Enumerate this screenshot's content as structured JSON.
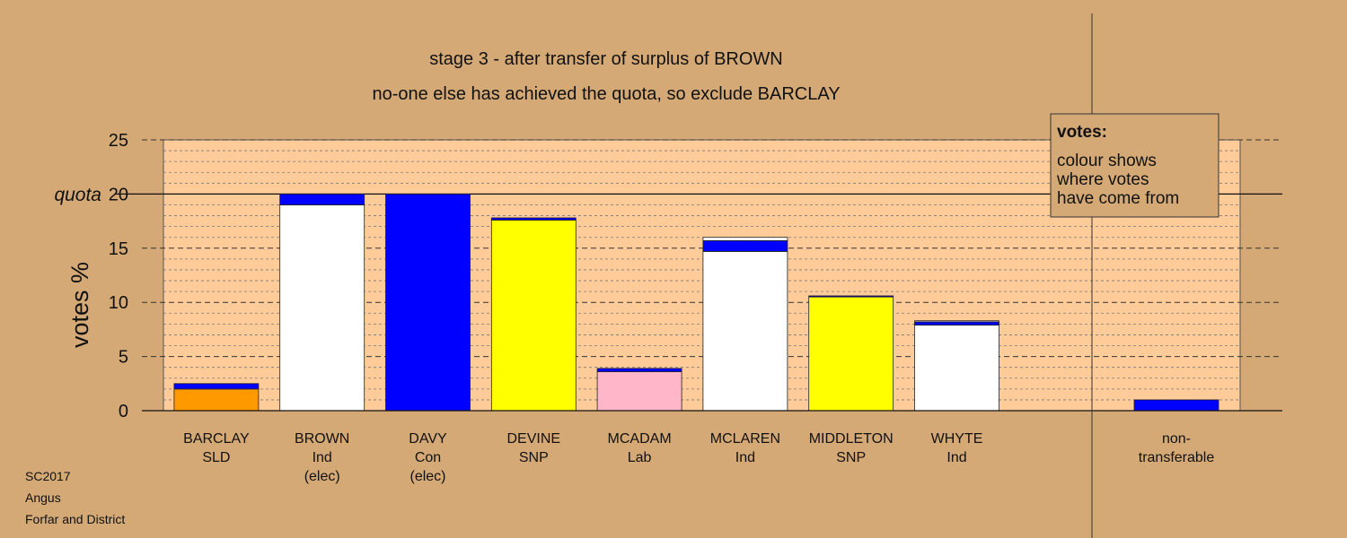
{
  "chart_data": {
    "type": "bar",
    "stacked": true,
    "title": "stage 3 - after transfer of surplus of BROWN",
    "subtitle": "no-one else has achieved the quota, so exclude BARCLAY",
    "ylabel": "votes %",
    "ylim": [
      0,
      25
    ],
    "yticks": [
      0,
      5,
      10,
      15,
      20,
      25
    ],
    "quota": {
      "label": "quota",
      "value": 20
    },
    "grid": "dashed",
    "legend": {
      "placement": "top-right",
      "title": "votes:",
      "lines": [
        "colour shows",
        "where votes",
        "have come from"
      ]
    },
    "categories": [
      {
        "name": "BARCLAY",
        "party": "SLD",
        "status": ""
      },
      {
        "name": "BROWN",
        "party": "Ind",
        "status": "(elec)"
      },
      {
        "name": "DAVY",
        "party": "Con",
        "status": "(elec)"
      },
      {
        "name": "DEVINE",
        "party": "SNP",
        "status": ""
      },
      {
        "name": "MCADAM",
        "party": "Lab",
        "status": ""
      },
      {
        "name": "MCLAREN",
        "party": "Ind",
        "status": ""
      },
      {
        "name": "MIDDLETON",
        "party": "SNP",
        "status": ""
      },
      {
        "name": "WHYTE",
        "party": "Ind",
        "status": ""
      }
    ],
    "bars": [
      {
        "segments": [
          {
            "value": 2.0,
            "color": "#FF9900"
          },
          {
            "value": 0.5,
            "color": "#0000FF"
          }
        ]
      },
      {
        "segments": [
          {
            "value": 19.0,
            "color": "#FFFFFF"
          },
          {
            "value": 1.0,
            "color": "#0000FF"
          }
        ]
      },
      {
        "segments": [
          {
            "value": 20.0,
            "color": "#0000FF"
          }
        ]
      },
      {
        "segments": [
          {
            "value": 17.6,
            "color": "#FFFF00"
          },
          {
            "value": 0.2,
            "color": "#0000FF"
          }
        ]
      },
      {
        "segments": [
          {
            "value": 3.6,
            "color": "#FFB6C8"
          },
          {
            "value": 0.3,
            "color": "#0000FF"
          }
        ]
      },
      {
        "segments": [
          {
            "value": 14.7,
            "color": "#FFFFFF"
          },
          {
            "value": 1.0,
            "color": "#0000FF"
          },
          {
            "value": 0.3,
            "color": "#FFFFFF"
          }
        ]
      },
      {
        "segments": [
          {
            "value": 10.5,
            "color": "#FFFF00"
          },
          {
            "value": 0.1,
            "color": "#0000FF"
          }
        ]
      },
      {
        "segments": [
          {
            "value": 7.9,
            "color": "#FFFFFF"
          },
          {
            "value": 0.3,
            "color": "#0000FF"
          },
          {
            "value": 0.1,
            "color": "#FFFFFF"
          }
        ]
      }
    ],
    "non_transferable": {
      "label_line1": "non-",
      "label_line2": "transferable",
      "segments": [
        {
          "value": 1.0,
          "color": "#0000FF"
        }
      ]
    },
    "footer": [
      "SC2017",
      "Angus",
      "Forfar and District"
    ]
  },
  "colors": {
    "background": "#D4A976",
    "plot_area": "#FFCC99",
    "legend_box": "#D4A976"
  }
}
